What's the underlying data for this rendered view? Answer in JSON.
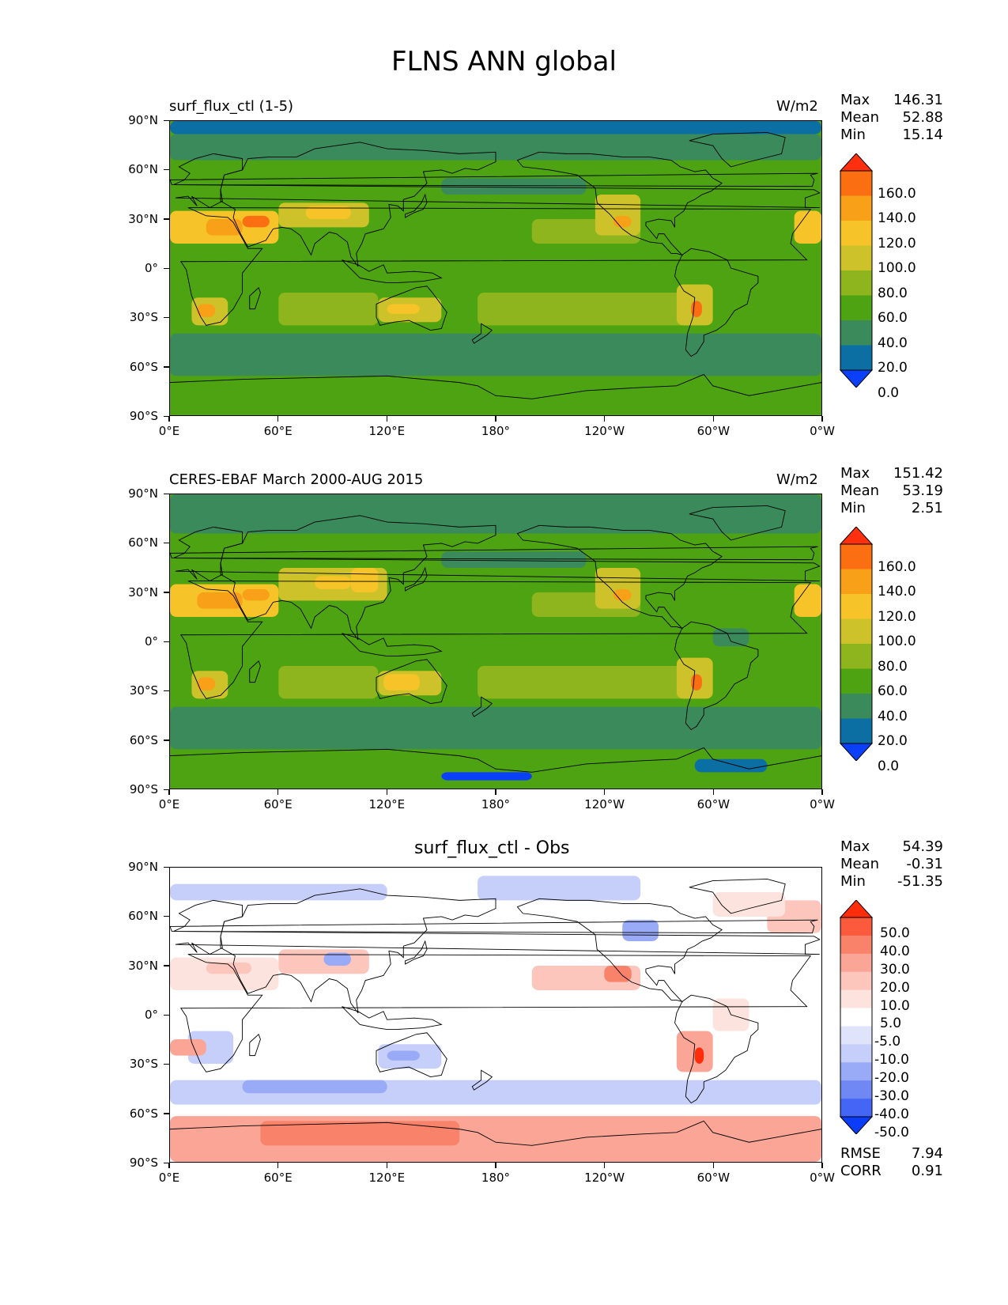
{
  "title": "FLNS ANN global",
  "lat_ticks": [
    "90°N",
    "60°N",
    "30°N",
    "0°",
    "30°S",
    "60°S",
    "90°S"
  ],
  "lon_ticks": [
    "0°E",
    "60°E",
    "120°E",
    "180°",
    "120°W",
    "60°W",
    "0°W"
  ],
  "panels": [
    {
      "left_title": "surf_flux_ctl (1-5)",
      "right_title": "W/m2",
      "center_title": "",
      "stats": {
        "max_label": "Max",
        "max": "146.31",
        "mean_label": "Mean",
        "mean": "52.88",
        "min_label": "Min",
        "min": "15.14"
      },
      "colorbar": {
        "labels": [
          "160.0",
          "140.0",
          "120.0",
          "100.0",
          "80.0",
          "60.0",
          "40.0",
          "20.0",
          "0.0"
        ],
        "colors": [
          "#ff3010",
          "#fb6e12",
          "#f8a018",
          "#f6c428",
          "#cdc22a",
          "#8fb51e",
          "#4ea312",
          "#3a8a5c",
          "#0b6fa4",
          "#0a40fa"
        ]
      }
    },
    {
      "left_title": "CERES-EBAF March 2000-AUG 2015",
      "right_title": "W/m2",
      "center_title": "",
      "stats": {
        "max_label": "Max",
        "max": "151.42",
        "mean_label": "Mean",
        "mean": "53.19",
        "min_label": "Min",
        "min": "2.51"
      },
      "colorbar": {
        "labels": [
          "160.0",
          "140.0",
          "120.0",
          "100.0",
          "80.0",
          "60.0",
          "40.0",
          "20.0",
          "0.0"
        ],
        "colors": [
          "#ff3010",
          "#fb6e12",
          "#f8a018",
          "#f6c428",
          "#cdc22a",
          "#8fb51e",
          "#4ea312",
          "#3a8a5c",
          "#0b6fa4",
          "#0a40fa"
        ]
      }
    },
    {
      "left_title": "",
      "right_title": "",
      "center_title": "surf_flux_ctl - Obs",
      "stats": {
        "max_label": "Max",
        "max": "54.39",
        "mean_label": "Mean",
        "mean": "-0.31",
        "min_label": "Min",
        "min": "-51.35"
      },
      "colorbar": {
        "labels": [
          "50.0",
          "40.0",
          "30.0",
          "20.0",
          "10.0",
          "5.0",
          "-5.0",
          "-10.0",
          "-20.0",
          "-30.0",
          "-40.0",
          "-50.0"
        ],
        "colors": [
          "#ff2d0a",
          "#fb5a3c",
          "#f8826a",
          "#fba596",
          "#fcc6bd",
          "#fde3de",
          "#ffffff",
          "#dfe4fb",
          "#c6cffa",
          "#99aaf6",
          "#6f88f4",
          "#4565f6",
          "#0a3cfa"
        ]
      },
      "footer": {
        "rmse_label": "RMSE",
        "rmse": "7.94",
        "corr_label": "CORR",
        "corr": "0.91"
      }
    }
  ],
  "chart_data": [
    {
      "type": "heatmap",
      "title": "surf_flux_ctl (1-5)",
      "units": "W/m2",
      "x_ticks": [
        "0°E",
        "60°E",
        "120°E",
        "180°",
        "120°W",
        "60°W",
        "0°W"
      ],
      "y_ticks": [
        "90°N",
        "60°N",
        "30°N",
        "0°",
        "30°S",
        "60°S",
        "90°S"
      ],
      "xlim": [
        0,
        360
      ],
      "ylim": [
        -90,
        90
      ],
      "max": 146.31,
      "mean": 52.88,
      "min": 15.14,
      "levels": [
        0,
        20,
        40,
        60,
        80,
        100,
        120,
        140,
        160
      ]
    },
    {
      "type": "heatmap",
      "title": "CERES-EBAF March 2000-AUG 2015",
      "units": "W/m2",
      "x_ticks": [
        "0°E",
        "60°E",
        "120°E",
        "180°",
        "120°W",
        "60°W",
        "0°W"
      ],
      "y_ticks": [
        "90°N",
        "60°N",
        "30°N",
        "0°",
        "30°S",
        "60°S",
        "90°S"
      ],
      "xlim": [
        0,
        360
      ],
      "ylim": [
        -90,
        90
      ],
      "max": 151.42,
      "mean": 53.19,
      "min": 2.51,
      "levels": [
        0,
        20,
        40,
        60,
        80,
        100,
        120,
        140,
        160
      ]
    },
    {
      "type": "heatmap",
      "title": "surf_flux_ctl - Obs",
      "x_ticks": [
        "0°E",
        "60°E",
        "120°E",
        "180°",
        "120°W",
        "60°W",
        "0°W"
      ],
      "y_ticks": [
        "90°N",
        "60°N",
        "30°N",
        "0°",
        "30°S",
        "60°S",
        "90°S"
      ],
      "xlim": [
        0,
        360
      ],
      "ylim": [
        -90,
        90
      ],
      "max": 54.39,
      "mean": -0.31,
      "min": -51.35,
      "rmse": 7.94,
      "corr": 0.91,
      "levels": [
        -50,
        -40,
        -30,
        -20,
        -10,
        -5,
        5,
        10,
        20,
        30,
        40,
        50
      ]
    }
  ]
}
